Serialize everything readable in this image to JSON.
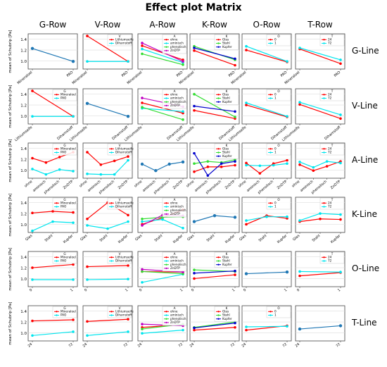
{
  "title": "Effect plot Matrix",
  "columns": [
    "G-Row",
    "V-Row",
    "A-Row",
    "K-Row",
    "O-Row",
    "T-Row"
  ],
  "rows": [
    "G-Line",
    "V-Line",
    "A-Line",
    "K-Line",
    "O-Line",
    "T-Line"
  ],
  "ylabel": "mean of Schubrip [Pa]",
  "colors": {
    "main": "#1f77b4",
    "red": "#ff0000",
    "cyan": "#00e5ee",
    "magenta": "#c000c0",
    "green": "#33dd33",
    "blue": "#0000cc",
    "violet": "#8a2be2"
  },
  "factors": {
    "G": {
      "levels": [
        "Mineraloel",
        "PAO"
      ],
      "colors": [
        "red",
        "cyan"
      ],
      "ticklabels": [
        "Mineraloel",
        "PAO"
      ]
    },
    "V": {
      "levels": [
        "Lithiumseife",
        "Diharnstoff"
      ],
      "colors": [
        "red",
        "cyan"
      ],
      "ticklabels": [
        "Lithiumseife",
        "Diharnstoff"
      ]
    },
    "A": {
      "levels": [
        "ohne",
        "aminisch",
        "phenolisch",
        "ZnDTP"
      ],
      "colors": [
        "red",
        "cyan",
        "green",
        "magenta"
      ],
      "ticklabels": [
        "ohne",
        "aminisch",
        "phenolisch",
        "ZnDTP"
      ]
    },
    "K": {
      "levels": [
        "Glas",
        "Stahl",
        "Kupfer"
      ],
      "colors": [
        "red",
        "green",
        "blue"
      ],
      "ticklabels": [
        "Glas",
        "Stahl",
        "Kupfer"
      ]
    },
    "O": {
      "levels": [
        "0",
        "1"
      ],
      "colors": [
        "red",
        "cyan"
      ],
      "ticklabels": [
        "0",
        "1"
      ]
    },
    "T": {
      "levels": [
        "24",
        "72"
      ],
      "colors": [
        "red",
        "cyan"
      ],
      "ticklabels": [
        "24",
        "72"
      ]
    }
  },
  "yticks": [
    "1.0",
    "1.2",
    "1.4"
  ],
  "ylim": [
    0.85,
    1.5
  ],
  "chart_data": {
    "type": "line",
    "title": "Effect plot Matrix",
    "ylabel": "mean of Schubrip [Pa]",
    "ylim": [
      0.85,
      1.5
    ],
    "panels": [
      {
        "row": 0,
        "col": 0,
        "x": "G",
        "series": [
          {
            "values": [
              1.23,
              0.99
            ]
          }
        ]
      },
      {
        "row": 0,
        "col": 1,
        "x": "G",
        "legend": "V",
        "series": [
          {
            "name": "Lithiumseife",
            "values": [
              1.46,
              0.99
            ]
          },
          {
            "name": "Diharnstoff",
            "values": [
              0.99,
              0.99
            ]
          }
        ]
      },
      {
        "row": 0,
        "col": 2,
        "x": "G",
        "legend": "A",
        "series": [
          {
            "name": "ohne",
            "values": [
              1.28,
              1.02
            ]
          },
          {
            "name": "aminisch",
            "values": [
              1.22,
              0.97
            ]
          },
          {
            "name": "phenolisch",
            "values": [
              1.13,
              0.93
            ]
          },
          {
            "name": "ZnDTP",
            "values": [
              1.33,
              0.99
            ]
          }
        ]
      },
      {
        "row": 0,
        "col": 3,
        "x": "G",
        "legend": "K",
        "series": [
          {
            "name": "Glas",
            "values": [
              1.19,
              0.92
            ]
          },
          {
            "name": "Stahl",
            "values": [
              1.27,
              1.02
            ]
          },
          {
            "name": "Kupfer",
            "values": [
              1.24,
              1.04
            ]
          }
        ]
      },
      {
        "row": 0,
        "col": 4,
        "x": "G",
        "legend": "O",
        "series": [
          {
            "name": "0",
            "values": [
              1.2,
              0.98
            ]
          },
          {
            "name": "1",
            "values": [
              1.27,
              0.99
            ]
          }
        ]
      },
      {
        "row": 0,
        "col": 5,
        "x": "G",
        "legend": "T",
        "series": [
          {
            "name": "24",
            "values": [
              1.22,
              0.95
            ]
          },
          {
            "name": "72",
            "values": [
              1.24,
              1.02
            ]
          }
        ]
      },
      {
        "row": 1,
        "col": 0,
        "x": "V",
        "legend": "G",
        "series": [
          {
            "name": "Mineraloel",
            "values": [
              1.46,
              0.99
            ]
          },
          {
            "name": "PAO",
            "values": [
              0.99,
              0.99
            ]
          }
        ]
      },
      {
        "row": 1,
        "col": 1,
        "x": "V",
        "series": [
          {
            "values": [
              1.23,
              0.99
            ]
          }
        ]
      },
      {
        "row": 1,
        "col": 2,
        "x": "V",
        "legend": "A",
        "series": [
          {
            "name": "ohne",
            "values": [
              1.24,
              1.05
            ]
          },
          {
            "name": "aminisch",
            "values": [
              1.14,
              1.08
            ]
          },
          {
            "name": "phenolisch",
            "values": [
              1.16,
              0.93
            ]
          },
          {
            "name": "ZnDTP",
            "values": [
              1.33,
              1.17
            ]
          }
        ]
      },
      {
        "row": 1,
        "col": 3,
        "x": "V",
        "legend": "K",
        "series": [
          {
            "name": "Glas",
            "values": [
              1.1,
              0.95
            ]
          },
          {
            "name": "Stahl",
            "values": [
              1.4,
              0.98
            ]
          },
          {
            "name": "Kupfer",
            "values": [
              1.18,
              1.08
            ]
          }
        ]
      },
      {
        "row": 1,
        "col": 4,
        "x": "V",
        "legend": "O",
        "series": [
          {
            "name": "0",
            "values": [
              1.2,
              0.98
            ]
          },
          {
            "name": "1",
            "values": [
              1.24,
              0.99
            ]
          }
        ]
      },
      {
        "row": 1,
        "col": 5,
        "x": "V",
        "legend": "T",
        "series": [
          {
            "name": "24",
            "values": [
              1.21,
              0.95
            ]
          },
          {
            "name": "72",
            "values": [
              1.25,
              1.02
            ]
          }
        ]
      },
      {
        "row": 2,
        "col": 0,
        "x": "A",
        "legend": "G",
        "series": [
          {
            "name": "Mineraloel",
            "values": [
              1.22,
              1.14,
              1.24,
              1.33
            ]
          },
          {
            "name": "PAO",
            "values": [
              1.02,
              0.92,
              1.01,
              0.98
            ]
          }
        ]
      },
      {
        "row": 2,
        "col": 1,
        "x": "A",
        "legend": "V",
        "series": [
          {
            "name": "Lithiumseife",
            "values": [
              1.33,
              1.1,
              1.17,
              1.25
            ]
          },
          {
            "name": "Diharnstoff",
            "values": [
              0.93,
              0.92,
              0.92,
              1.18
            ]
          }
        ]
      },
      {
        "row": 2,
        "col": 2,
        "x": "A",
        "series": [
          {
            "values": [
              1.11,
              0.99,
              1.11,
              1.15
            ]
          }
        ]
      },
      {
        "row": 2,
        "col": 3,
        "x": "A",
        "legend": "K",
        "series": [
          {
            "name": "Glas",
            "values": [
              0.97,
              1.06,
              1.06,
              1.09
            ]
          },
          {
            "name": "Stahl",
            "values": [
              1.12,
              1.16,
              1.14,
              1.19
            ]
          },
          {
            "name": "Kupfer",
            "values": [
              1.31,
              0.9,
              1.12,
              1.16
            ]
          }
        ]
      },
      {
        "row": 2,
        "col": 4,
        "x": "A",
        "legend": "O",
        "series": [
          {
            "name": "0",
            "values": [
              1.13,
              0.94,
              1.12,
              1.18
            ]
          },
          {
            "name": "1",
            "values": [
              1.09,
              1.08,
              1.09,
              1.12
            ]
          }
        ]
      },
      {
        "row": 2,
        "col": 5,
        "x": "A",
        "legend": "T",
        "series": [
          {
            "name": "24",
            "values": [
              1.1,
              0.99,
              1.07,
              1.16
            ]
          },
          {
            "name": "72",
            "values": [
              1.15,
              1.05,
              1.16,
              1.13
            ]
          }
        ]
      },
      {
        "row": 3,
        "col": 0,
        "x": "K",
        "legend": "G",
        "series": [
          {
            "name": "Mineraloel",
            "values": [
              1.21,
              1.24,
              1.22
            ]
          },
          {
            "name": "PAO",
            "values": [
              0.88,
              1.05,
              1.03
            ]
          }
        ]
      },
      {
        "row": 3,
        "col": 1,
        "x": "K",
        "legend": "V",
        "series": [
          {
            "name": "Lithiumseife",
            "values": [
              1.1,
              1.4,
              1.17
            ]
          },
          {
            "name": "Diharnstoff",
            "values": [
              0.98,
              0.92,
              1.05
            ]
          }
        ]
      },
      {
        "row": 3,
        "col": 2,
        "x": "K",
        "legend": "A",
        "series": [
          {
            "name": "ohne",
            "values": [
              1.0,
              1.12,
              1.27
            ]
          },
          {
            "name": "aminisch",
            "values": [
              1.05,
              1.09,
              0.93
            ]
          },
          {
            "name": "phenolisch",
            "values": [
              1.1,
              1.13,
              1.14
            ]
          },
          {
            "name": "ZnDTP",
            "values": [
              0.98,
              1.17,
              1.16
            ]
          }
        ]
      },
      {
        "row": 3,
        "col": 3,
        "x": "K",
        "series": [
          {
            "values": [
              1.05,
              1.16,
              1.13
            ]
          }
        ]
      },
      {
        "row": 3,
        "col": 4,
        "x": "K",
        "legend": "O",
        "series": [
          {
            "name": "0",
            "values": [
              1.0,
              1.16,
              1.11
            ]
          },
          {
            "name": "1",
            "values": [
              1.07,
              1.14,
              1.14
            ]
          }
        ]
      },
      {
        "row": 3,
        "col": 5,
        "x": "K",
        "legend": "T",
        "series": [
          {
            "name": "24",
            "values": [
              1.05,
              1.1,
              1.09
            ]
          },
          {
            "name": "72",
            "values": [
              1.07,
              1.2,
              1.18
            ]
          }
        ]
      },
      {
        "row": 4,
        "col": 0,
        "x": "O",
        "legend": "G",
        "series": [
          {
            "name": "Mineraloel",
            "values": [
              1.2,
              1.26
            ]
          },
          {
            "name": "PAO",
            "values": [
              0.98,
              0.98
            ]
          }
        ]
      },
      {
        "row": 4,
        "col": 1,
        "x": "O",
        "legend": "V",
        "series": [
          {
            "name": "Lithiumseife",
            "values": [
              1.22,
              1.24
            ]
          },
          {
            "name": "Diharnstoff",
            "values": [
              0.98,
              0.99
            ]
          }
        ]
      },
      {
        "row": 4,
        "col": 2,
        "x": "O",
        "legend": "A",
        "series": [
          {
            "name": "ohne",
            "values": [
              1.13,
              1.12
            ]
          },
          {
            "name": "aminisch",
            "values": [
              0.93,
              1.08
            ]
          },
          {
            "name": "phenolisch",
            "values": [
              1.13,
              1.09
            ]
          },
          {
            "name": "ZnDTP",
            "values": [
              1.17,
              1.12
            ]
          }
        ]
      },
      {
        "row": 4,
        "col": 3,
        "x": "O",
        "legend": "K",
        "series": [
          {
            "name": "Glas",
            "values": [
              1.0,
              1.07
            ]
          },
          {
            "name": "Stahl",
            "values": [
              1.16,
              1.13
            ]
          },
          {
            "name": "Kupfer",
            "values": [
              1.1,
              1.14
            ]
          }
        ]
      },
      {
        "row": 4,
        "col": 4,
        "x": "O",
        "series": [
          {
            "values": [
              1.09,
              1.12
            ]
          }
        ]
      },
      {
        "row": 4,
        "col": 5,
        "x": "O",
        "legend": "T",
        "series": [
          {
            "name": "24",
            "values": [
              1.05,
              1.11
            ]
          },
          {
            "name": "72",
            "values": [
              1.13,
              1.12
            ]
          }
        ]
      },
      {
        "row": 5,
        "col": 0,
        "x": "T",
        "legend": "G",
        "series": [
          {
            "name": "Mineraloel",
            "values": [
              1.22,
              1.24
            ]
          },
          {
            "name": "PAO",
            "values": [
              0.95,
              1.02
            ]
          }
        ]
      },
      {
        "row": 5,
        "col": 1,
        "x": "T",
        "legend": "V",
        "series": [
          {
            "name": "Lithiumseife",
            "values": [
              1.21,
              1.25
            ]
          },
          {
            "name": "Diharnstoff",
            "values": [
              0.95,
              1.02
            ]
          }
        ]
      },
      {
        "row": 5,
        "col": 2,
        "x": "T",
        "legend": "A",
        "series": [
          {
            "name": "ohne",
            "values": [
              1.1,
              1.15
            ]
          },
          {
            "name": "aminisch",
            "values": [
              0.99,
              1.05
            ]
          },
          {
            "name": "phenolisch",
            "values": [
              1.07,
              1.16
            ]
          },
          {
            "name": "ZnDTP",
            "values": [
              1.16,
              1.13
            ]
          }
        ]
      },
      {
        "row": 5,
        "col": 3,
        "x": "T",
        "legend": "K",
        "series": [
          {
            "name": "Glas",
            "values": [
              1.05,
              1.1
            ]
          },
          {
            "name": "Stahl",
            "values": [
              1.1,
              1.2
            ]
          },
          {
            "name": "Kupfer",
            "values": [
              1.09,
              1.18
            ]
          }
        ]
      },
      {
        "row": 5,
        "col": 4,
        "x": "T",
        "legend": "O",
        "series": [
          {
            "name": "0",
            "values": [
              1.05,
              1.13
            ]
          },
          {
            "name": "1",
            "values": [
              1.11,
              1.12
            ]
          }
        ]
      },
      {
        "row": 5,
        "col": 5,
        "x": "T",
        "series": [
          {
            "values": [
              1.07,
              1.13
            ]
          }
        ]
      }
    ]
  }
}
